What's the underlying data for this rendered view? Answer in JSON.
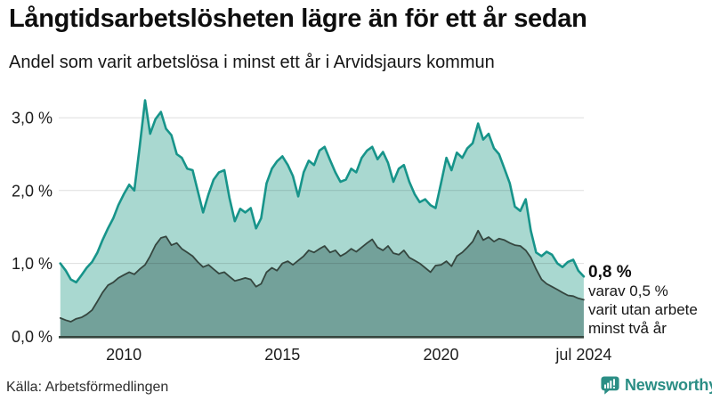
{
  "header": {
    "title": "Långtidsarbetslösheten lägre än för ett år sedan",
    "subtitle": "Andel som varit arbetslösa i minst ett år i Arvidsjaurs kommun"
  },
  "footer": {
    "source": "Källa: Arbetsförmedlingen",
    "brand": "Newsworthy"
  },
  "colors": {
    "accent_teal": "#17948a",
    "light_fill": "#a9d8d0",
    "dark_fill": "#73a19a",
    "dark_stroke": "#35463f",
    "brand_teal": "#2b8e85",
    "text": "#161616",
    "gridline": "rgba(0,0,0,0.13)"
  },
  "chart_data": {
    "type": "area",
    "title": "Långtidsarbetslösheten lägre än för ett år sedan",
    "subtitle": "Andel som varit arbetslösa i minst ett år i Arvidsjaurs kommun",
    "xlabel": "",
    "ylabel": "",
    "y_unit": "%",
    "xlim": [
      2008,
      2024.58
    ],
    "ylim": [
      0,
      3.4
    ],
    "grid": true,
    "legend_position": "none",
    "x_tick_positions": [
      2010,
      2015,
      2020,
      2024.5
    ],
    "x_tick_labels": [
      "2010",
      "2015",
      "2020",
      "jul 2024"
    ],
    "y_tick_values": [
      0,
      1,
      2,
      3
    ],
    "y_tick_labels": [
      "0,0 %",
      "1,0 %",
      "2,0 %",
      "3,0 %"
    ],
    "x": [
      2008,
      2008.17,
      2008.33,
      2008.5,
      2008.67,
      2008.83,
      2009,
      2009.17,
      2009.33,
      2009.5,
      2009.67,
      2009.83,
      2010,
      2010.17,
      2010.33,
      2010.5,
      2010.67,
      2010.83,
      2011,
      2011.17,
      2011.33,
      2011.5,
      2011.67,
      2011.83,
      2012,
      2012.17,
      2012.33,
      2012.5,
      2012.67,
      2012.83,
      2013,
      2013.17,
      2013.33,
      2013.5,
      2013.67,
      2013.83,
      2014,
      2014.17,
      2014.33,
      2014.5,
      2014.67,
      2014.83,
      2015,
      2015.17,
      2015.33,
      2015.5,
      2015.67,
      2015.83,
      2016,
      2016.17,
      2016.33,
      2016.5,
      2016.67,
      2016.83,
      2017,
      2017.17,
      2017.33,
      2017.5,
      2017.67,
      2017.83,
      2018,
      2018.17,
      2018.33,
      2018.5,
      2018.67,
      2018.83,
      2019,
      2019.17,
      2019.33,
      2019.5,
      2019.67,
      2019.83,
      2020,
      2020.17,
      2020.33,
      2020.5,
      2020.67,
      2020.83,
      2021,
      2021.17,
      2021.33,
      2021.5,
      2021.67,
      2021.83,
      2022,
      2022.17,
      2022.33,
      2022.5,
      2022.67,
      2022.83,
      2023,
      2023.17,
      2023.33,
      2023.5,
      2023.67,
      2023.83,
      2024,
      2024.17,
      2024.33,
      2024.5
    ],
    "series": [
      {
        "name": "Arbetslösa minst ett år",
        "color": "#17948a",
        "fill": "#a9d8d0",
        "stroke_width": 2.6,
        "last_value_label": "0,8 %",
        "values": [
          1.0,
          0.9,
          0.78,
          0.74,
          0.84,
          0.94,
          1.02,
          1.15,
          1.32,
          1.48,
          1.62,
          1.8,
          1.95,
          2.08,
          2.0,
          2.6,
          3.24,
          2.78,
          2.98,
          3.08,
          2.85,
          2.76,
          2.5,
          2.45,
          2.3,
          2.28,
          2.0,
          1.7,
          1.95,
          2.15,
          2.25,
          2.28,
          1.9,
          1.58,
          1.75,
          1.7,
          1.76,
          1.48,
          1.62,
          2.1,
          2.3,
          2.4,
          2.47,
          2.35,
          2.2,
          1.92,
          2.25,
          2.41,
          2.35,
          2.55,
          2.6,
          2.42,
          2.25,
          2.12,
          2.15,
          2.3,
          2.25,
          2.45,
          2.55,
          2.6,
          2.43,
          2.53,
          2.38,
          2.12,
          2.3,
          2.35,
          2.12,
          1.95,
          1.84,
          1.88,
          1.8,
          1.76,
          2.1,
          2.45,
          2.28,
          2.52,
          2.45,
          2.58,
          2.65,
          2.92,
          2.7,
          2.78,
          2.58,
          2.5,
          2.3,
          2.1,
          1.78,
          1.72,
          1.88,
          1.45,
          1.15,
          1.1,
          1.16,
          1.12,
          1.0,
          0.95,
          1.02,
          1.05,
          0.9,
          0.82
        ]
      },
      {
        "name": "Utan arbete minst två år",
        "color": "#35463f",
        "fill": "#73a19a",
        "stroke_width": 1.8,
        "last_value_label": "0,5 %",
        "values": [
          0.25,
          0.22,
          0.2,
          0.24,
          0.26,
          0.3,
          0.36,
          0.48,
          0.6,
          0.7,
          0.74,
          0.8,
          0.84,
          0.88,
          0.85,
          0.92,
          0.98,
          1.1,
          1.25,
          1.35,
          1.37,
          1.25,
          1.28,
          1.2,
          1.15,
          1.1,
          1.02,
          0.95,
          0.98,
          0.92,
          0.86,
          0.88,
          0.82,
          0.76,
          0.78,
          0.8,
          0.78,
          0.68,
          0.72,
          0.88,
          0.94,
          0.9,
          1.0,
          1.03,
          0.98,
          1.04,
          1.1,
          1.18,
          1.15,
          1.2,
          1.24,
          1.15,
          1.18,
          1.1,
          1.14,
          1.2,
          1.16,
          1.22,
          1.28,
          1.33,
          1.22,
          1.18,
          1.24,
          1.14,
          1.12,
          1.18,
          1.08,
          1.04,
          1.0,
          0.94,
          0.88,
          0.97,
          0.98,
          1.03,
          0.96,
          1.1,
          1.15,
          1.22,
          1.3,
          1.45,
          1.32,
          1.36,
          1.3,
          1.34,
          1.32,
          1.28,
          1.25,
          1.24,
          1.18,
          1.08,
          0.92,
          0.78,
          0.72,
          0.68,
          0.64,
          0.6,
          0.56,
          0.55,
          0.52,
          0.5
        ]
      }
    ],
    "annotation": {
      "value": "0,8 %",
      "detail_lines": [
        "varav 0,5 %",
        "varit utan arbete",
        "minst två år"
      ]
    }
  }
}
